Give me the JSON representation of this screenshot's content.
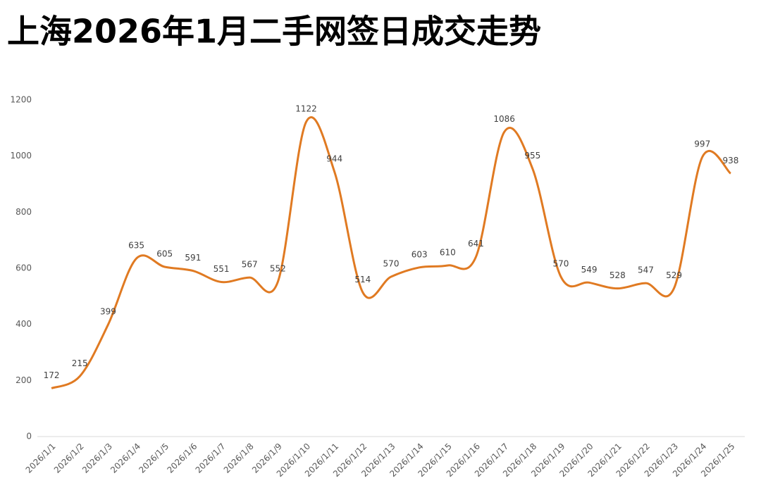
{
  "chart_data": {
    "type": "line",
    "title": "上海2026年1月二手网签日成交走势",
    "categories": [
      "2026/1/1",
      "2026/1/2",
      "2026/1/3",
      "2026/1/4",
      "2026/1/5",
      "2026/1/6",
      "2026/1/7",
      "2026/1/8",
      "2026/1/9",
      "2026/1/10",
      "2026/1/11",
      "2026/1/12",
      "2026/1/13",
      "2026/1/14",
      "2026/1/15",
      "2026/1/16",
      "2026/1/17",
      "2026/1/18",
      "2026/1/19",
      "2026/1/20",
      "2026/1/21",
      "2026/1/22",
      "2026/1/23",
      "2026/1/24",
      "2026/1/25"
    ],
    "values": [
      172,
      215,
      399,
      635,
      605,
      591,
      551,
      567,
      552,
      1122,
      944,
      514,
      570,
      603,
      610,
      641,
      1086,
      955,
      570,
      549,
      528,
      547,
      529,
      997,
      938
    ],
    "color": "#e07a22",
    "ylim": [
      0,
      1200
    ],
    "yticks": [
      0,
      200,
      400,
      600,
      800,
      1000,
      1200
    ],
    "grid": false
  }
}
